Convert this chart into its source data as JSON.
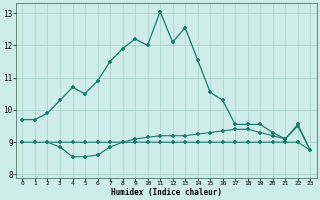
{
  "xlabel": "Humidex (Indice chaleur)",
  "line_color": "#1a7a6e",
  "bg_color": "#ceecea",
  "grid_color": "#aed6d2",
  "ylim": [
    7.9,
    13.3
  ],
  "xlim": [
    -0.5,
    23.5
  ],
  "yticks": [
    8,
    9,
    10,
    11,
    12,
    13
  ],
  "xticks": [
    0,
    1,
    2,
    3,
    4,
    5,
    6,
    7,
    8,
    9,
    10,
    11,
    12,
    13,
    14,
    15,
    16,
    17,
    18,
    19,
    20,
    21,
    22,
    23
  ],
  "main_x": [
    0,
    1,
    2,
    3,
    4,
    5,
    6,
    7,
    8,
    9,
    10,
    11,
    12,
    13,
    14,
    15,
    16,
    17,
    18,
    19,
    20,
    21,
    22,
    23
  ],
  "main_y": [
    9.7,
    9.7,
    9.9,
    10.3,
    10.7,
    10.5,
    10.9,
    11.5,
    11.9,
    12.2,
    12.0,
    13.05,
    12.1,
    12.55,
    11.55,
    10.55,
    10.3,
    9.55,
    9.55,
    9.55,
    9.3,
    9.1,
    9.55,
    8.75
  ],
  "flat1_x": [
    0,
    1,
    2,
    3,
    4,
    5,
    6,
    7,
    8,
    9,
    10,
    11,
    12,
    13,
    14,
    15,
    16,
    17,
    18,
    19,
    20,
    21,
    22,
    23
  ],
  "flat1_y": [
    9.0,
    9.0,
    9.0,
    9.0,
    9.0,
    9.0,
    9.0,
    9.0,
    9.0,
    9.0,
    9.0,
    9.0,
    9.0,
    9.0,
    9.0,
    9.0,
    9.0,
    9.0,
    9.0,
    9.0,
    9.0,
    9.0,
    9.0,
    8.75
  ],
  "flat2_x": [
    2,
    3,
    4,
    5,
    6,
    7,
    8,
    9,
    10,
    11,
    12,
    13,
    14,
    15,
    16,
    17,
    18,
    19,
    20,
    21,
    22,
    23
  ],
  "flat2_y": [
    9.0,
    8.85,
    8.55,
    8.55,
    8.6,
    8.85,
    9.0,
    9.1,
    9.15,
    9.2,
    9.2,
    9.2,
    9.25,
    9.3,
    9.35,
    9.4,
    9.4,
    9.3,
    9.2,
    9.1,
    9.5,
    8.75
  ]
}
